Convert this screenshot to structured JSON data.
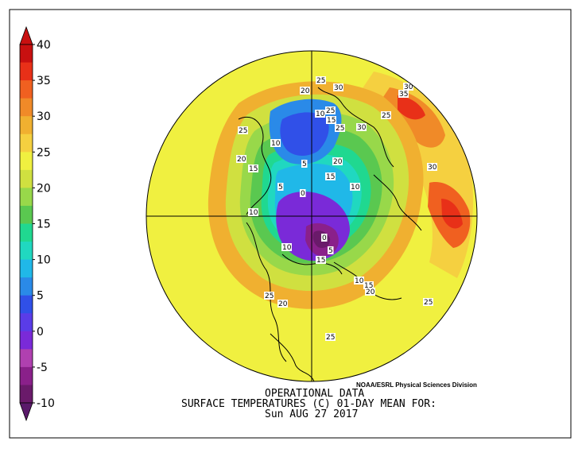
{
  "colorbar": {
    "ticks": [
      "40",
      "35",
      "30",
      "25",
      "20",
      "15",
      "10",
      "5",
      "0",
      "-5",
      "-10"
    ],
    "colors": [
      "#6a1a6a",
      "#8a208a",
      "#b040b0",
      "#7a2ad8",
      "#5a3ce8",
      "#3050e8",
      "#2a8ae8",
      "#20b8e8",
      "#20d8c0",
      "#20d890",
      "#5ac850",
      "#98d84a",
      "#d0e040",
      "#f0f040",
      "#f5d040",
      "#f0b030",
      "#f08a28",
      "#f06020",
      "#e83018",
      "#c81010"
    ],
    "arrow_top_color": "#c81010",
    "arrow_bottom_color": "#5a1a6a"
  },
  "map": {
    "projection": "polar stereographic, northern hemisphere",
    "background_color": "#f0f040",
    "contour_labels": [
      {
        "text": "25"
      },
      {
        "text": "30"
      },
      {
        "text": "30"
      },
      {
        "text": "35"
      },
      {
        "text": "20"
      },
      {
        "text": "10"
      },
      {
        "text": "25"
      },
      {
        "text": "15"
      },
      {
        "text": "25"
      },
      {
        "text": "30"
      },
      {
        "text": "25"
      },
      {
        "text": "25"
      },
      {
        "text": "20"
      },
      {
        "text": "10"
      },
      {
        "text": "15"
      },
      {
        "text": "5"
      },
      {
        "text": "20"
      },
      {
        "text": "30"
      },
      {
        "text": "5"
      },
      {
        "text": "15"
      },
      {
        "text": "10"
      },
      {
        "text": "0"
      },
      {
        "text": "10"
      },
      {
        "text": "0"
      },
      {
        "text": "10"
      },
      {
        "text": "5"
      },
      {
        "text": "15"
      },
      {
        "text": "10"
      },
      {
        "text": "15"
      },
      {
        "text": "20"
      },
      {
        "text": "25"
      },
      {
        "text": "20"
      },
      {
        "text": "25"
      },
      {
        "text": "25"
      }
    ]
  },
  "credit": "NOAA/ESRL Physical Sciences Division",
  "caption": {
    "line1": "OPERATIONAL DATA",
    "line2": "SURFACE TEMPERATURES (C)   01-DAY MEAN FOR:",
    "line3": "Sun AUG 27 2017"
  }
}
